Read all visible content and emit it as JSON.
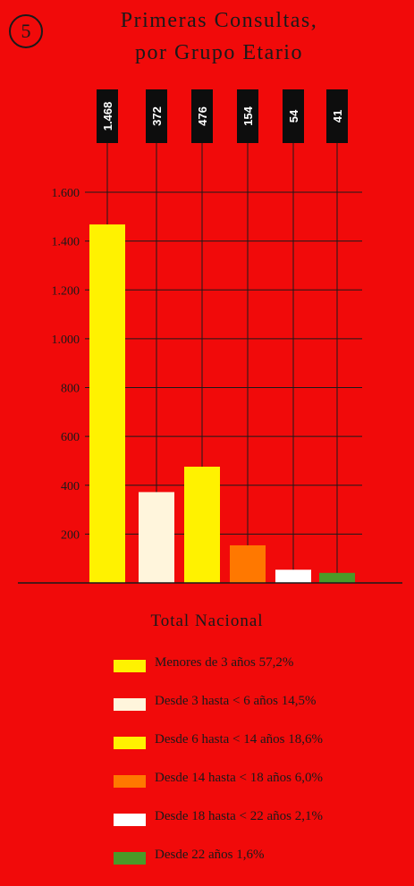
{
  "badge": "5",
  "chart_data": {
    "type": "bar",
    "title": "Primeras Consultas,",
    "title_line2": "por Grupo Etario",
    "subtitle": "Total Nacional",
    "categories": [
      "Menores de 3 años",
      "Desde 3 hasta < 6 años",
      "Desde 6 hasta < 14 años",
      "Desde 14 hasta < 18 años",
      "Desde 18 hasta < 22 años",
      "Desde 22 años"
    ],
    "values": [
      1468,
      372,
      476,
      154,
      54,
      41
    ],
    "value_labels": [
      "1.468",
      "372",
      "476",
      "154",
      "54",
      "41"
    ],
    "colors": [
      "#FFF200",
      "#FFF5DC",
      "#FFF200",
      "#FF7800",
      "#FFFFFF",
      "#4A9A28"
    ],
    "ylim": [
      0,
      1600
    ],
    "yticks": [
      200,
      400,
      600,
      800,
      1000,
      1200,
      1400,
      1600
    ],
    "ytick_labels": [
      "200",
      "400",
      "600",
      "800",
      "1.000",
      "1.200",
      "1.400",
      "1.600"
    ],
    "grid": true,
    "legend_position": "bottom",
    "legend": [
      "Menores de 3 años 57,2%",
      "Desde 3 hasta < 6 años 14,5%",
      "Desde 6 hasta < 14 años 18,6%",
      "Desde 14 hasta < 18 años 6,0%",
      "Desde 18 hasta < 22 años 2,1%",
      "Desde 22 años 1,6%"
    ]
  }
}
